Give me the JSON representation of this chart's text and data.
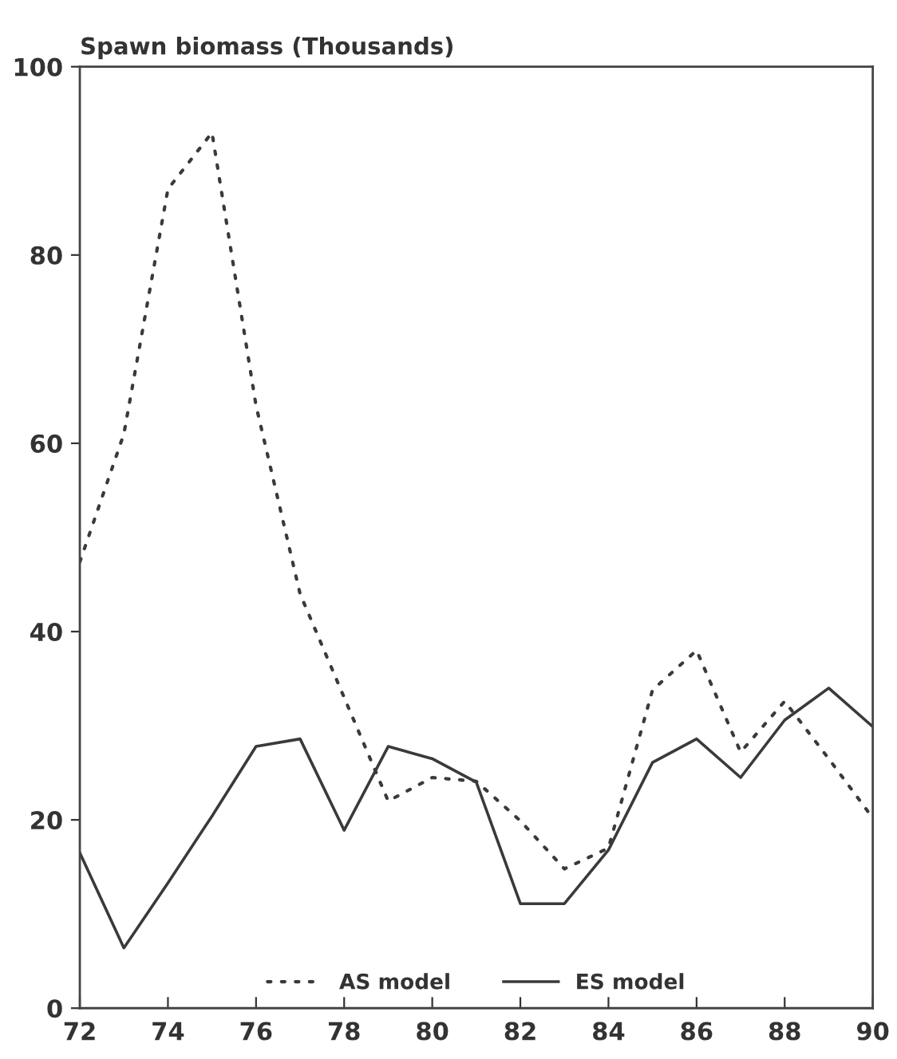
{
  "chart_data": {
    "type": "line",
    "ylabel": "Spawn biomass (Thousands)",
    "x": [
      72,
      73,
      74,
      75,
      76,
      77,
      78,
      79,
      80,
      81,
      82,
      83,
      84,
      85,
      86,
      87,
      88,
      89,
      90
    ],
    "series": [
      {
        "name": "AS model",
        "color": "#3a3a3a",
        "line_style": "dotted",
        "values": [
          47.4,
          61,
          87,
          93,
          64,
          44,
          33,
          22,
          24.5,
          24.1,
          19.9,
          14.8,
          17,
          33.8,
          38,
          27.2,
          32.6,
          26.5,
          20.2
        ]
      },
      {
        "name": "ES model",
        "color": "#3a3a3a",
        "line_style": "solid",
        "values": [
          16.5,
          6.4,
          13.3,
          20.4,
          27.8,
          28.6,
          18.9,
          27.8,
          26.5,
          24,
          11.1,
          11.1,
          16.8,
          26.1,
          28.6,
          24.5,
          30.6,
          34,
          29.9
        ]
      }
    ],
    "xlim": [
      72,
      90
    ],
    "ylim": [
      0,
      100
    ],
    "xticks": [
      72,
      74,
      76,
      78,
      80,
      82,
      84,
      86,
      88,
      90
    ],
    "yticks": [
      0,
      20,
      40,
      60,
      80,
      100
    ],
    "legend": "bottom",
    "marker": "none"
  }
}
